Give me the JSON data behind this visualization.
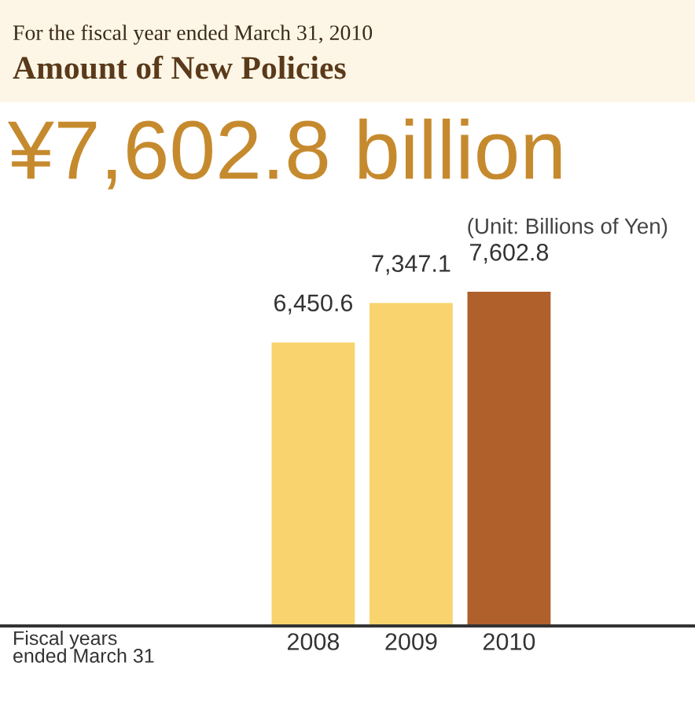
{
  "chart_data": {
    "type": "bar",
    "subtitle": "For the fiscal year ended March 31, 2010",
    "title": "Amount of New Policies",
    "annotations": [
      "¥7,602.8 billion",
      "(Unit: Billions of Yen)",
      "Fiscal years\nended March 31"
    ],
    "categories": [
      "2008",
      "2009",
      "2010"
    ],
    "values": [
      6450.6,
      7347.1,
      7602.8
    ],
    "colors": [
      "#f9d46e",
      "#f9d46e",
      "#b0602a"
    ],
    "value_labels": [
      "6,450.6",
      "7,347.1",
      "7,602.8"
    ],
    "grid": false
  }
}
